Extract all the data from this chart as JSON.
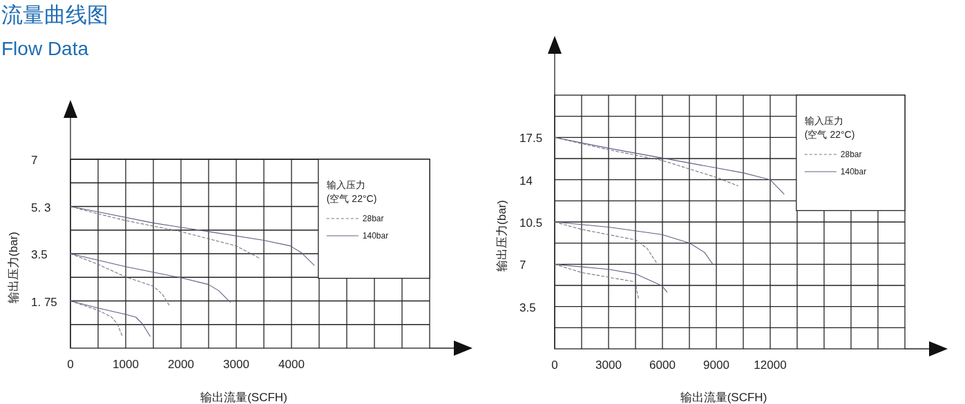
{
  "chart_data": [
    {
      "type": "line",
      "title": "流量曲线图",
      "subtitle": "Flow Data",
      "xlabel": "输出流量(SCFH)",
      "ylabel": "输出压力(bar)",
      "legend_title": "输入压力\n(空气 22°C)",
      "legend": "top right",
      "grid": true,
      "marker": "none",
      "xlim": [
        0,
        6500
      ],
      "ylim": [
        0,
        7
      ],
      "xticks": [
        0,
        {
          "value": 500,
          "label": null
        },
        1000,
        {
          "value": 1500,
          "label": null
        },
        2000,
        {
          "value": 2500,
          "label": null
        },
        3000,
        {
          "value": 3500,
          "label": null
        },
        4000,
        {
          "value": 4500,
          "label": null
        },
        {
          "value": 5000,
          "label": null
        },
        {
          "value": 5500,
          "label": null
        },
        {
          "value": 6000,
          "label": null
        }
      ],
      "yticks": [
        {
          "value": 0.875,
          "label": null
        },
        {
          "value": 1.75,
          "label": "1. 75"
        },
        {
          "value": 2.625,
          "label": null
        },
        3.5,
        {
          "value": 4.375,
          "label": null
        },
        {
          "value": 5.25,
          "label": "5. 3"
        },
        {
          "value": 6.125,
          "label": null
        },
        7
      ],
      "series": [
        {
          "name": "28bar",
          "color": "#707488",
          "line_style": "dashed",
          "x": [
            0,
            496,
            996,
            1996,
            2996,
            3433
          ],
          "values": [
            5.25,
            4.98,
            4.73,
            4.32,
            3.79,
            3.32
          ]
        },
        {
          "name": "140bar",
          "color": "#5c6080",
          "line_style": "solid",
          "x": [
            0,
            496,
            1496,
            2496,
            3496,
            3975,
            4183,
            4412
          ],
          "values": [
            5.25,
            5.05,
            4.64,
            4.32,
            4.0,
            3.79,
            3.53,
            3.07
          ]
        },
        {
          "color": "#707488",
          "line_style": "dashed",
          "x": [
            0,
            496,
            996,
            1496,
            1663,
            1788
          ],
          "values": [
            3.5,
            3.11,
            2.64,
            2.3,
            2.0,
            1.59
          ]
        },
        {
          "color": "#5c6080",
          "line_style": "solid",
          "x": [
            0,
            996,
            1996,
            2496,
            2683,
            2891
          ],
          "values": [
            3.5,
            3.02,
            2.61,
            2.36,
            2.13,
            1.7
          ]
        },
        {
          "color": "#707488",
          "line_style": "dashed",
          "x": [
            0,
            496,
            746,
            850,
            933
          ],
          "values": [
            1.75,
            1.41,
            1.15,
            0.89,
            0.47
          ]
        },
        {
          "color": "#5c6080",
          "line_style": "solid",
          "x": [
            0,
            496,
            996,
            1183,
            1308,
            1441
          ],
          "values": [
            1.75,
            1.49,
            1.25,
            1.15,
            0.89,
            0.44
          ]
        }
      ]
    },
    {
      "type": "line",
      "xlabel": "输出流量(SCFH)",
      "ylabel": "输出压力(bar)",
      "legend_title": "输入压力\n(空气 22°C)",
      "legend": "top right",
      "grid": true,
      "marker": "none",
      "xlim": [
        0,
        19500
      ],
      "ylim": [
        0,
        21
      ],
      "xticks": [
        0,
        {
          "value": 1500,
          "label": null
        },
        3000,
        {
          "value": 4500,
          "label": null
        },
        6000,
        {
          "value": 7500,
          "label": null
        },
        9000,
        {
          "value": 10500,
          "label": null
        },
        12000,
        {
          "value": 13500,
          "label": null
        },
        {
          "value": 15000,
          "label": null
        },
        {
          "value": 16500,
          "label": null
        },
        {
          "value": 18000,
          "label": null
        }
      ],
      "yticks": [
        {
          "value": 1.75,
          "label": null
        },
        3.5,
        {
          "value": 5.25,
          "label": null
        },
        7,
        {
          "value": 8.75,
          "label": null
        },
        10.5,
        {
          "value": 12.25,
          "label": null
        },
        14,
        {
          "value": 15.75,
          "label": null
        },
        17.5,
        {
          "value": 19.25,
          "label": null
        }
      ],
      "series": [
        {
          "name": "28bar",
          "color": "#707488",
          "line_style": "dashed",
          "x": [
            0,
            3026,
            5974,
            8987,
            10205
          ],
          "values": [
            17.5,
            16.47,
            15.6,
            14.2,
            13.5
          ]
        },
        {
          "name": "140bar",
          "color": "#5c6080",
          "line_style": "solid",
          "x": [
            0,
            3026,
            5974,
            8987,
            10526,
            12000,
            12769
          ],
          "values": [
            17.5,
            16.6,
            15.8,
            14.98,
            14.56,
            13.99,
            12.82
          ]
        },
        {
          "color": "#707488",
          "line_style": "dashed",
          "x": [
            0,
            1487,
            4500,
            5141,
            5718
          ],
          "values": [
            10.5,
            9.89,
            9.02,
            8.32,
            7.02
          ]
        },
        {
          "color": "#5c6080",
          "line_style": "solid",
          "x": [
            0,
            3026,
            5974,
            7500,
            8346,
            8795
          ],
          "values": [
            10.5,
            10.07,
            9.46,
            8.76,
            7.98,
            7.02
          ]
        },
        {
          "color": "#707488",
          "line_style": "dashed",
          "x": [
            0,
            1487,
            4500,
            4564,
            4667
          ],
          "values": [
            7.0,
            6.32,
            5.54,
            4.87,
            4.18
          ]
        },
        {
          "color": "#5c6080",
          "line_style": "solid",
          "x": [
            0,
            3026,
            4500,
            5974,
            6256
          ],
          "values": [
            7.0,
            6.58,
            6.2,
            5.22,
            4.7
          ]
        }
      ]
    }
  ]
}
